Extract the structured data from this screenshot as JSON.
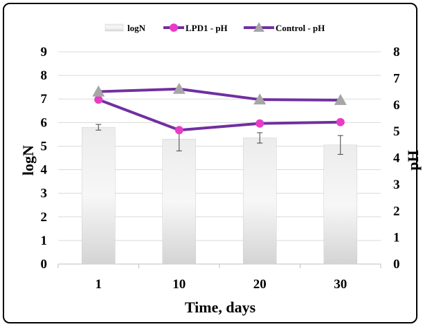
{
  "chart_data": {
    "type": "bar+line",
    "categories": [
      "1",
      "10",
      "20",
      "30"
    ],
    "xlabel": "Time, days",
    "ylabel_left": "logN",
    "ylabel_right": "pH",
    "ylim_left": [
      0,
      9
    ],
    "ylim_right": [
      0,
      8
    ],
    "yticks_left": [
      "0",
      "1",
      "2",
      "3",
      "4",
      "5",
      "6",
      "7",
      "8",
      "9"
    ],
    "yticks_right": [
      "0",
      "1",
      "2",
      "3",
      "4",
      "5",
      "6",
      "7",
      "8"
    ],
    "grid": true,
    "legend_position": "top",
    "bars": {
      "name": "logN",
      "values": [
        5.8,
        5.3,
        5.35,
        5.05
      ],
      "errors": [
        0.12,
        0.5,
        0.22,
        0.4
      ],
      "color": "#dcdcdc"
    },
    "series": [
      {
        "name": "LPD1 - pH",
        "axis": "right",
        "values": [
          6.2,
          5.05,
          5.3,
          5.35
        ],
        "line_color": "#7030a0",
        "marker": "circle",
        "marker_color": "#e83cc8"
      },
      {
        "name": "Control - pH",
        "axis": "right",
        "values": [
          6.5,
          6.6,
          6.2,
          6.18
        ],
        "line_color": "#7030a0",
        "marker": "triangle",
        "marker_color": "#a6a6a6"
      }
    ]
  }
}
